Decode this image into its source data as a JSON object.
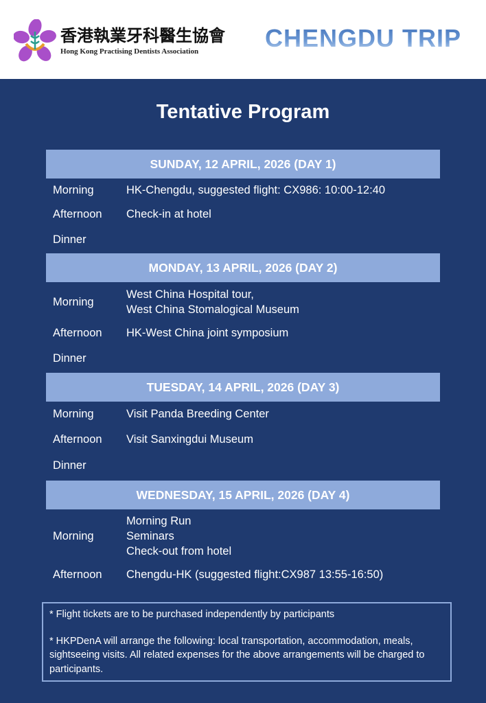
{
  "header": {
    "org_cn": "香港執業牙科醫生協會",
    "org_en": "Hong Kong Practising Dentists Association",
    "trip_title": "CHENGDU TRIP"
  },
  "title": "Tentative Program",
  "days": [
    {
      "heading": "SUNDAY, 12 APRIL, 2026 (DAY 1)",
      "rows": [
        {
          "label": "Morning",
          "lines": [
            "HK-Chengdu, suggested flight: CX986: 10:00-12:40"
          ]
        },
        {
          "label": "Afternoon",
          "lines": [
            "Check-in at hotel"
          ]
        },
        {
          "label": "Dinner",
          "lines": [
            ""
          ]
        }
      ]
    },
    {
      "heading": "MONDAY, 13 APRIL, 2026 (DAY 2)",
      "rows": [
        {
          "label": "Morning",
          "lines": [
            "West China Hospital tour,",
            "West China Stomalogical Museum"
          ]
        },
        {
          "label": "Afternoon",
          "lines": [
            "HK-West China joint symposium"
          ]
        },
        {
          "label": "Dinner",
          "lines": [
            ""
          ]
        }
      ]
    },
    {
      "heading": "TUESDAY, 14 APRIL, 2026 (DAY 3)",
      "rows": [
        {
          "label": "Morning",
          "lines": [
            "Visit Panda Breeding Center"
          ]
        },
        {
          "label": "Afternoon",
          "lines": [
            "Visit Sanxingdui Museum"
          ]
        },
        {
          "label": "Dinner",
          "lines": [
            ""
          ]
        }
      ]
    },
    {
      "heading": "WEDNESDAY, 15 APRIL, 2026 (DAY 4)",
      "rows": [
        {
          "label": "Morning",
          "lines": [
            "Morning Run",
            "Seminars",
            "Check-out from hotel"
          ]
        },
        {
          "label": "Afternoon",
          "lines": [
            "Chengdu-HK (suggested flight:CX987 13:55-16:50)"
          ]
        }
      ]
    }
  ],
  "notes": [
    "*  Flight tickets are to be purchased independently by participants",
    "*  HKPDenA will arrange the following: local transportation, accommodation, meals, sightseeing visits. All related expenses for the above arrangements will be charged to participants."
  ],
  "colors": {
    "background": "#1f3a6f",
    "day_header": "#8eaadb"
  }
}
